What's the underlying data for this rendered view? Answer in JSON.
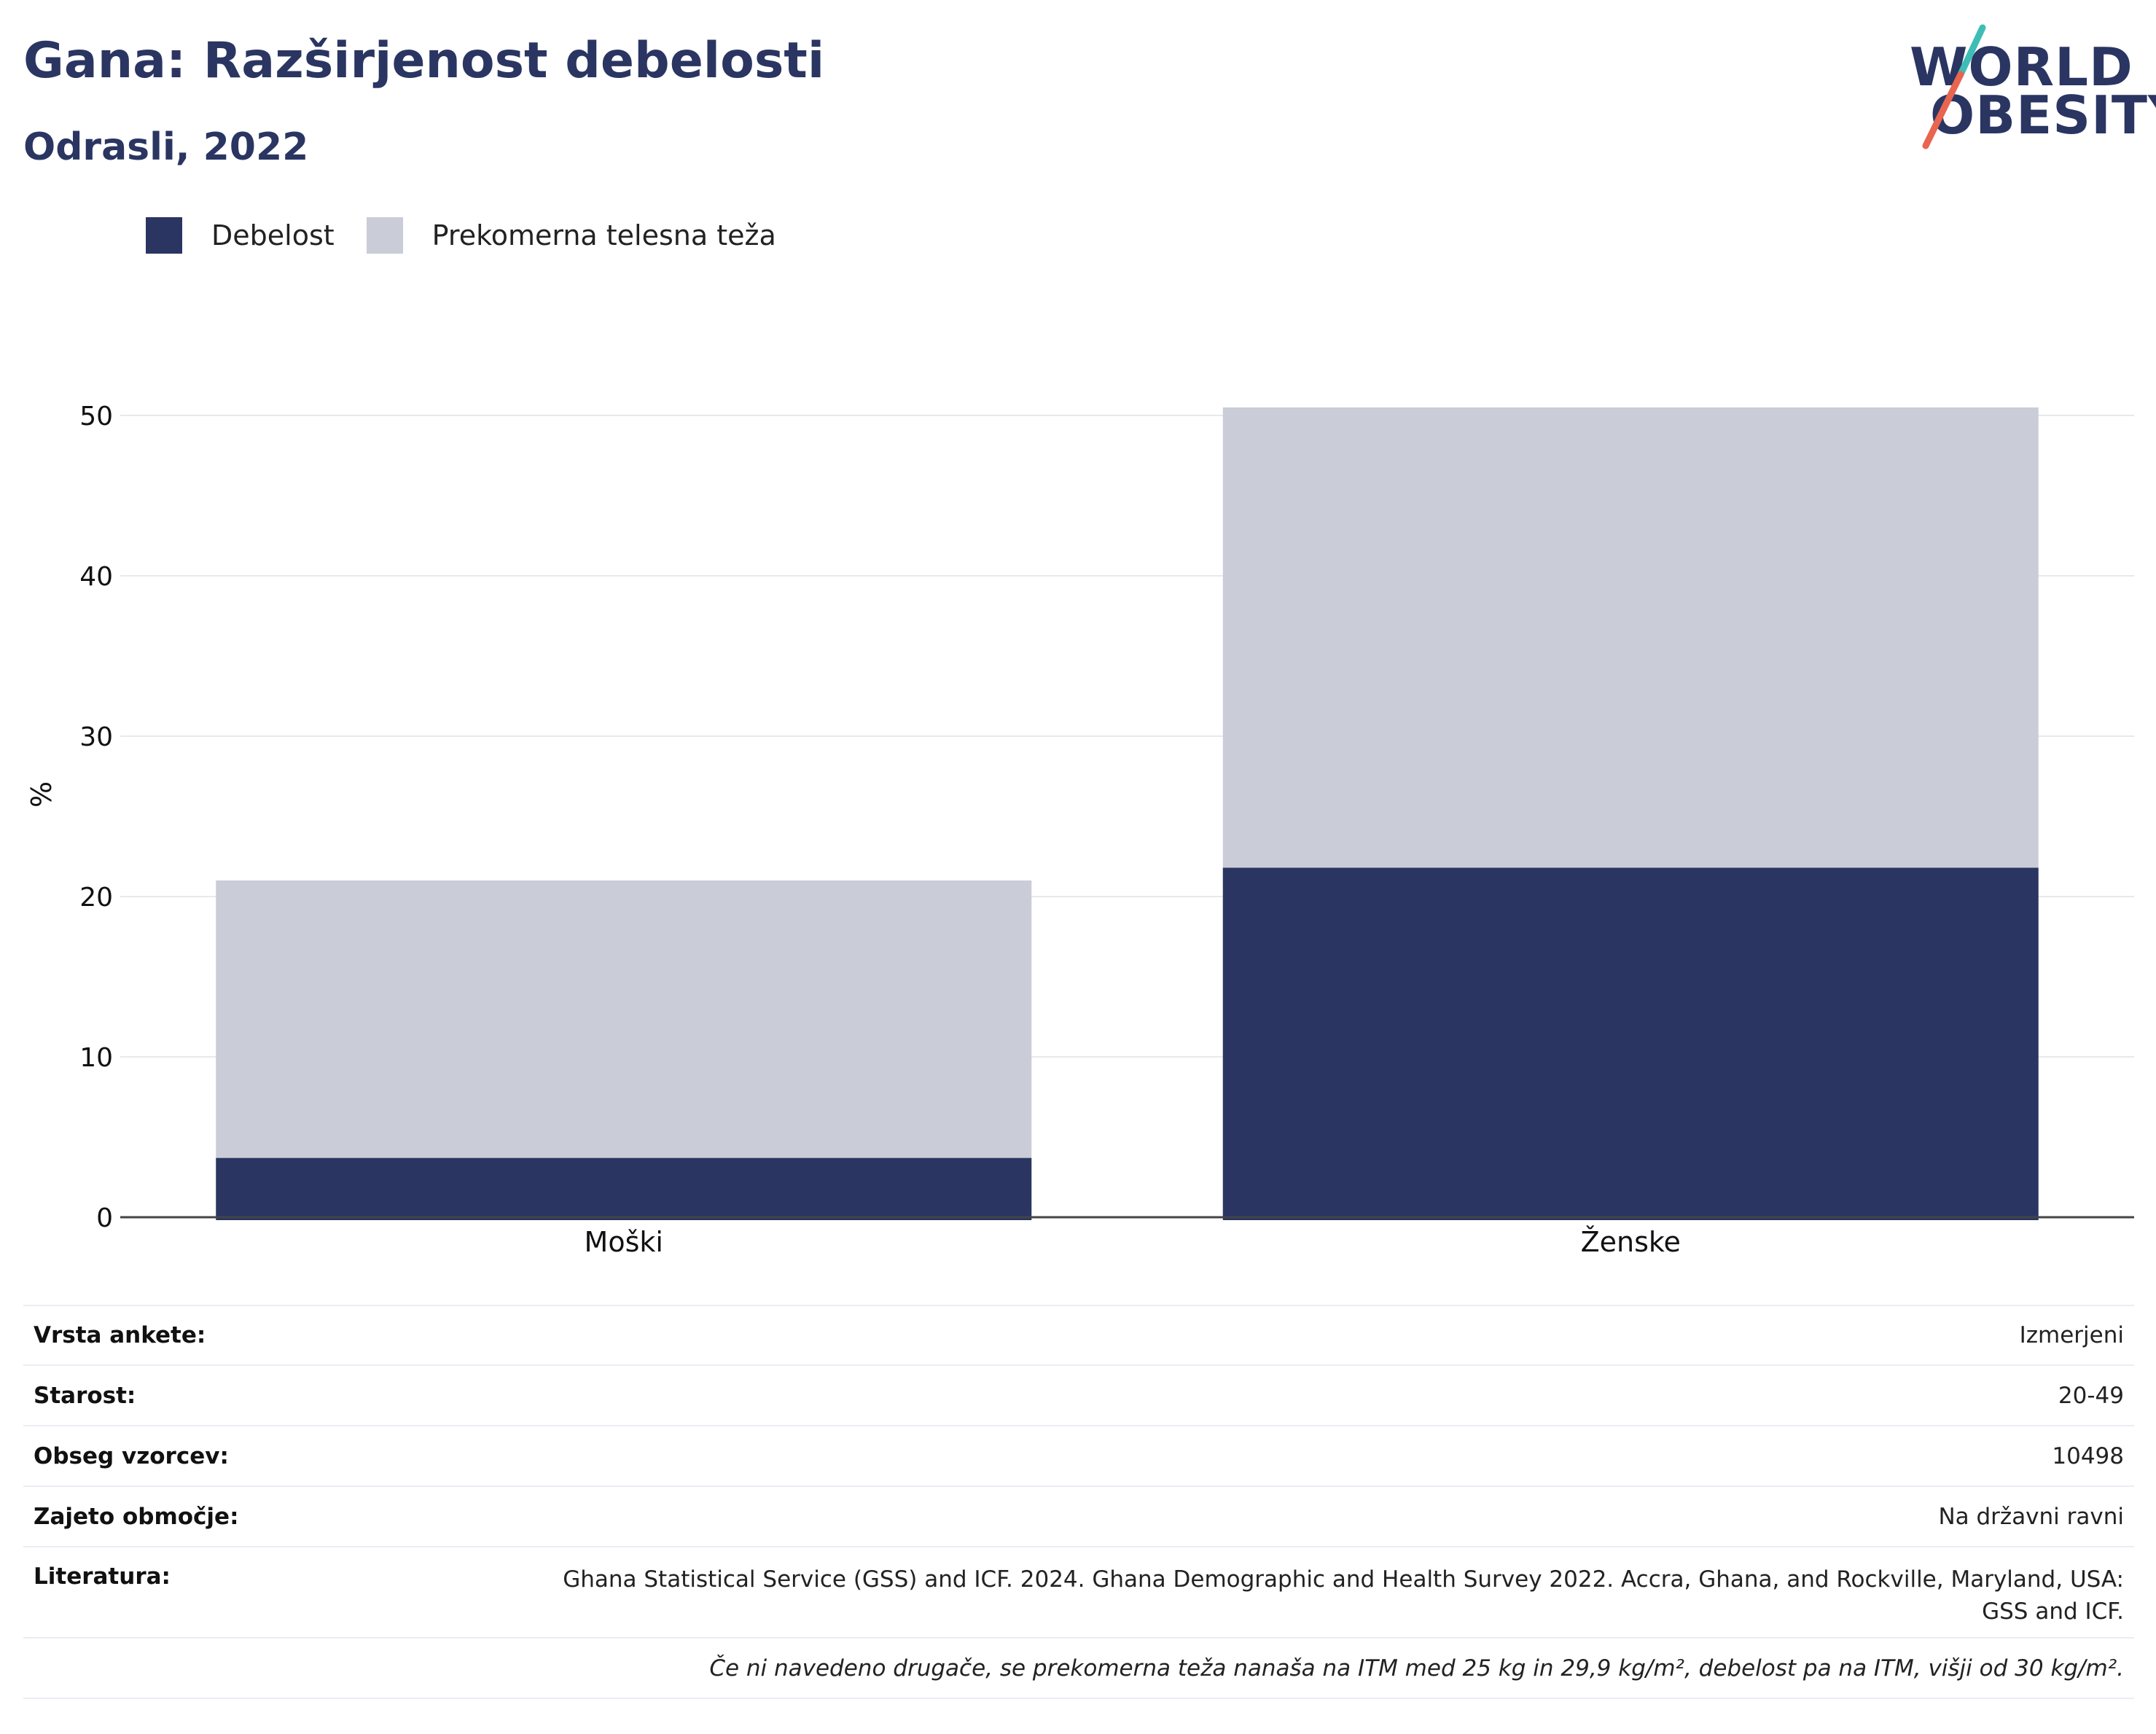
{
  "header": {
    "title": "Gana: Razširjenost debelosti",
    "subtitle": "Odrasli, 2022"
  },
  "logo": {
    "line1": "WORLD",
    "line2": "OBESITY",
    "colors": {
      "text": "#2a3562",
      "slash_top": "#3dbdb6",
      "slash_bottom": "#e8654f"
    }
  },
  "legend": {
    "items": [
      {
        "label": "Debelost",
        "color": "#2a3562"
      },
      {
        "label": "Prekomerna telesna teža",
        "color": "#cacdd8"
      }
    ]
  },
  "chart_data": {
    "type": "bar",
    "stacked": true,
    "categories": [
      "Moški",
      "Ženske"
    ],
    "series": [
      {
        "name": "Debelost",
        "values": [
          3.7,
          21.8
        ],
        "color": "#2a3562"
      },
      {
        "name": "Prekomerna telesna teža",
        "values": [
          17.3,
          28.7
        ],
        "color": "#cacdd8"
      }
    ],
    "xlabel": "",
    "ylabel": "%",
    "ylim": [
      0,
      54
    ],
    "yticks": [
      0,
      10,
      20,
      30,
      40,
      50
    ],
    "grid": true,
    "legend_position": "top-left"
  },
  "info": {
    "rows": [
      {
        "key": "Vrsta ankete:",
        "value": "Izmerjeni"
      },
      {
        "key": "Starost:",
        "value": "20-49"
      },
      {
        "key": "Obseg vzorcev:",
        "value": "10498"
      },
      {
        "key": "Zajeto območje:",
        "value": "Na državni ravni"
      },
      {
        "key": "Literatura:",
        "value": "Ghana Statistical Service (GSS) and ICF. 2024. Ghana Demographic and Health Survey 2022. Accra, Ghana, and Rockville, Maryland, USA: GSS and ICF."
      }
    ],
    "note": "Če ni navedeno drugače, se prekomerna teža nanaša na ITM med 25 kg in 29,9 kg/m², debelost pa na ITM, višji od 30 kg/m²."
  }
}
